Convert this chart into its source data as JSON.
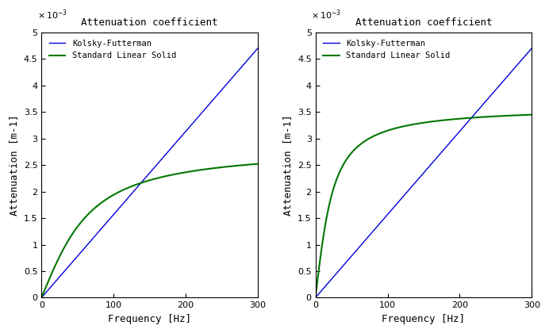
{
  "title": "Attenuation coefficient",
  "xlabel": "Frequency [Hz]",
  "ylabel": "Attenuation [m-1]",
  "xlim": [
    0,
    300
  ],
  "ylim": [
    0,
    0.005
  ],
  "freq_max": 300,
  "n_points": 1000,
  "legend_kolsky": "Kolsky-Futterman",
  "legend_sls": "Standard Linear Solid",
  "kolsky_color": "#0000dd",
  "sls_color": "#007700",
  "background_color": "#ffffff",
  "plot1": {
    "kolsky_slope": 1.567e-05,
    "sls_alpha_max": 0.00285,
    "sls_f_peak": 55.0
  },
  "plot2": {
    "kolsky_slope": 1.567e-05,
    "sls_alpha_max": 0.0036,
    "sls_f_peak": 20.0
  }
}
